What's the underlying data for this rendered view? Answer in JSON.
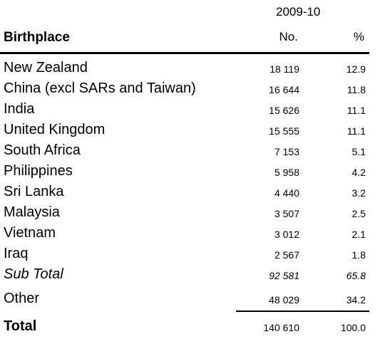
{
  "table": {
    "period": "2009-10",
    "columns": {
      "birthplace": "Birthplace",
      "number": "No.",
      "percent": "%"
    },
    "rows": [
      {
        "birthplace": "New Zealand",
        "number": "18 119",
        "percent": "12.9"
      },
      {
        "birthplace": "China (excl SARs and Taiwan)",
        "number": "16 644",
        "percent": "11.8"
      },
      {
        "birthplace": "India",
        "number": "15 626",
        "percent": "11.1"
      },
      {
        "birthplace": "United Kingdom",
        "number": "15 555",
        "percent": "11.1"
      },
      {
        "birthplace": "South Africa",
        "number": "7 153",
        "percent": "5.1"
      },
      {
        "birthplace": "Philippines",
        "number": "5 958",
        "percent": "4.2"
      },
      {
        "birthplace": "Sri Lanka",
        "number": "4 440",
        "percent": "3.2"
      },
      {
        "birthplace": "Malaysia",
        "number": "3 507",
        "percent": "2.5"
      },
      {
        "birthplace": "Vietnam",
        "number": "3 012",
        "percent": "2.1"
      },
      {
        "birthplace": "Iraq",
        "number": "2 567",
        "percent": "1.8"
      }
    ],
    "subtotal": {
      "birthplace": "Sub Total",
      "number": "92 581",
      "percent": "65.8"
    },
    "other": {
      "birthplace": "Other",
      "number": "48 029",
      "percent": "34.2"
    },
    "total": {
      "birthplace": "Total",
      "number": "140 610",
      "percent": "100.0"
    }
  }
}
